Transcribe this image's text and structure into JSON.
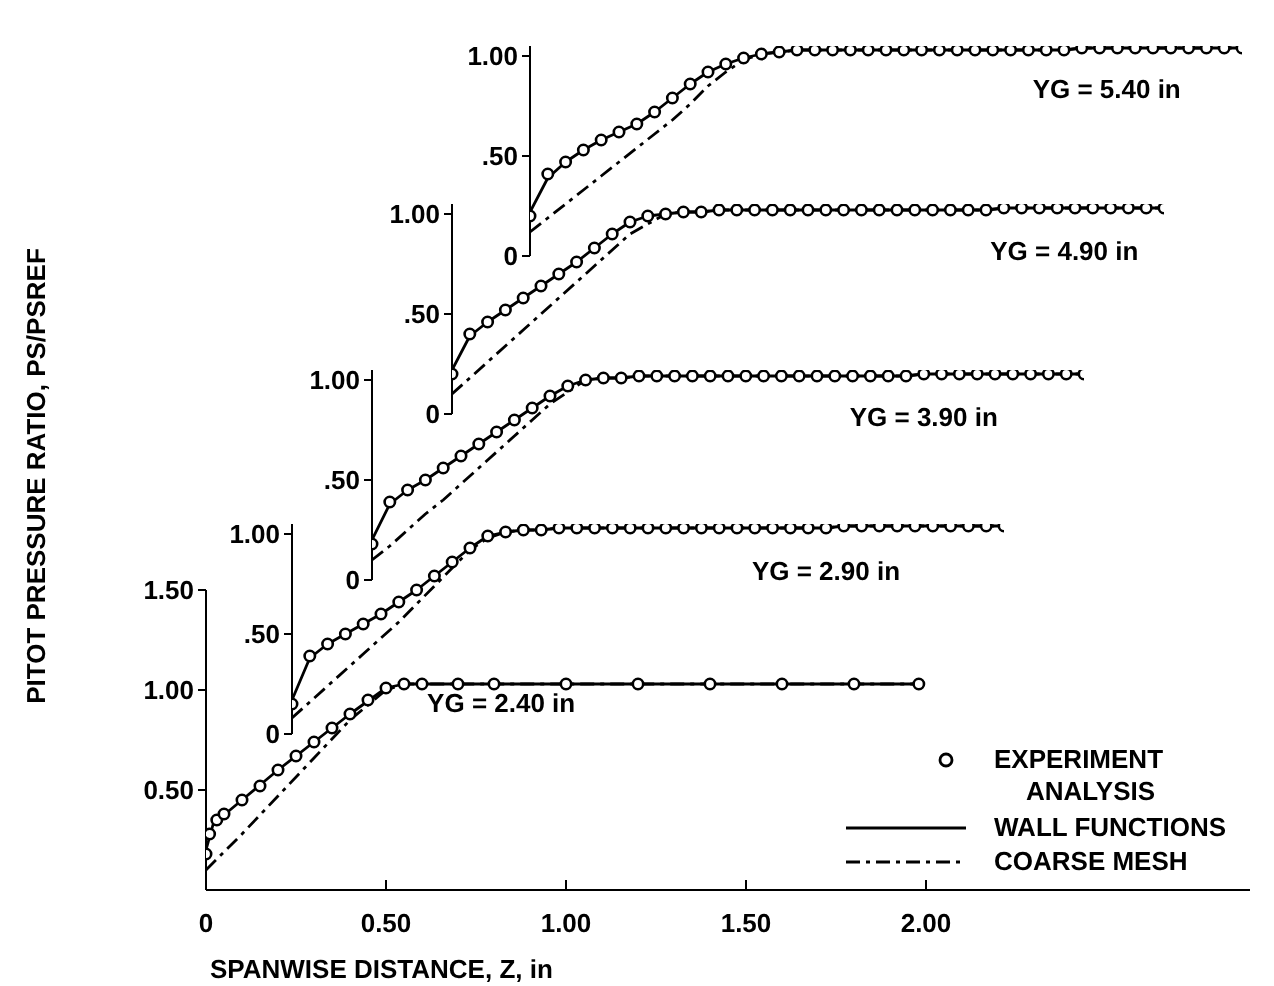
{
  "chart_data": [
    {
      "type": "scatter",
      "categories": [
        null,
        null,
        null,
        null,
        null,
        null,
        null,
        null,
        null,
        null,
        null,
        null,
        null,
        null,
        null,
        null,
        null,
        null,
        null,
        null,
        null,
        null,
        null,
        null,
        null,
        null,
        null,
        null,
        null,
        null,
        null,
        null,
        null,
        null,
        null,
        null,
        null,
        null,
        null,
        null,
        null
      ],
      "ylim": [
        0,
        1.05
      ],
      "yticks": [
        {
          "value": 0,
          "label": "0"
        },
        {
          "value": 0.5,
          "label": ".50"
        },
        {
          "value": 1.0,
          "label": "1.00"
        }
      ],
      "tick_labels": "y",
      "annotations": [
        "YG = 5.40 in"
      ],
      "series": [
        {
          "color": "#000000",
          "marker": "circle",
          "values": [
            0.2,
            0.41,
            0.47,
            0.53,
            0.58,
            0.62,
            0.66,
            0.72,
            0.79,
            0.86,
            0.92,
            0.96,
            0.99,
            1.01,
            1.02,
            1.03,
            1.03,
            1.03,
            1.03,
            1.03,
            1.03,
            1.03,
            1.03,
            1.03,
            1.03,
            1.03,
            1.03,
            1.03,
            1.03,
            1.03,
            1.03,
            1.04,
            1.04,
            1.04,
            1.04,
            1.04,
            1.04,
            1.04,
            1.04,
            1.04,
            1.04
          ]
        },
        {
          "type": "line",
          "color": "#000000",
          "line_style": "solid",
          "values": [
            0.22,
            0.39,
            0.47,
            0.53,
            0.58,
            0.62,
            0.66,
            0.72,
            0.79,
            0.86,
            0.92,
            0.96,
            0.99,
            1.01,
            1.02,
            1.03,
            1.03,
            1.03,
            1.03,
            1.03,
            1.03,
            1.03,
            1.03,
            1.03,
            1.03,
            1.03,
            1.03,
            1.03,
            1.03,
            1.03,
            1.03,
            1.04,
            1.04,
            1.04,
            1.04,
            1.04,
            1.04,
            1.04,
            1.04,
            1.04,
            1.04
          ]
        },
        {
          "type": "line",
          "color": "#000000",
          "line_style": "dashed",
          "values": [
            0.12,
            0.19,
            0.26,
            0.33,
            0.4,
            0.47,
            0.54,
            0.61,
            0.68,
            0.76,
            0.85,
            0.92,
            0.98,
            1.01,
            1.02,
            1.03,
            1.03,
            1.03,
            1.03,
            1.03,
            1.03,
            1.03,
            1.03,
            1.03,
            1.03,
            1.03,
            1.03,
            1.03,
            1.03,
            1.03,
            1.03,
            1.04,
            1.04,
            1.04,
            1.04,
            1.04,
            1.04,
            1.04,
            1.04,
            1.04,
            1.04
          ]
        }
      ]
    },
    {
      "type": "scatter",
      "categories": [
        null,
        null,
        null,
        null,
        null,
        null,
        null,
        null,
        null,
        null,
        null,
        null,
        null,
        null,
        null,
        null,
        null,
        null,
        null,
        null,
        null,
        null,
        null,
        null,
        null,
        null,
        null,
        null,
        null,
        null,
        null,
        null,
        null,
        null,
        null,
        null,
        null,
        null,
        null,
        null,
        null
      ],
      "ylim": [
        0,
        1.05
      ],
      "yticks": [
        {
          "value": 0,
          "label": "0"
        },
        {
          "value": 0.5,
          "label": ".50"
        },
        {
          "value": 1.0,
          "label": "1.00"
        }
      ],
      "tick_labels": "y",
      "annotations": [
        "YG = 4.90 in"
      ],
      "series": [
        {
          "color": "#000000",
          "marker": "circle",
          "values": [
            0.2,
            0.4,
            0.46,
            0.52,
            0.58,
            0.64,
            0.7,
            0.76,
            0.83,
            0.9,
            0.96,
            0.99,
            1.0,
            1.01,
            1.01,
            1.02,
            1.02,
            1.02,
            1.02,
            1.02,
            1.02,
            1.02,
            1.02,
            1.02,
            1.02,
            1.02,
            1.02,
            1.02,
            1.02,
            1.02,
            1.02,
            1.03,
            1.03,
            1.03,
            1.03,
            1.03,
            1.03,
            1.03,
            1.03,
            1.03,
            1.03
          ]
        },
        {
          "type": "line",
          "color": "#000000",
          "line_style": "solid",
          "values": [
            0.22,
            0.39,
            0.46,
            0.52,
            0.58,
            0.64,
            0.7,
            0.76,
            0.83,
            0.9,
            0.96,
            0.99,
            1.0,
            1.01,
            1.01,
            1.02,
            1.02,
            1.02,
            1.02,
            1.02,
            1.02,
            1.02,
            1.02,
            1.02,
            1.02,
            1.02,
            1.02,
            1.02,
            1.02,
            1.02,
            1.02,
            1.03,
            1.03,
            1.03,
            1.03,
            1.03,
            1.03,
            1.03,
            1.03,
            1.03,
            1.03
          ]
        },
        {
          "type": "line",
          "color": "#000000",
          "line_style": "dashed",
          "values": [
            0.1,
            0.18,
            0.26,
            0.34,
            0.42,
            0.5,
            0.58,
            0.66,
            0.74,
            0.82,
            0.9,
            0.95,
            1.0,
            1.01,
            1.01,
            1.02,
            1.02,
            1.02,
            1.02,
            1.02,
            1.02,
            1.02,
            1.02,
            1.02,
            1.02,
            1.02,
            1.02,
            1.02,
            1.02,
            1.02,
            1.02,
            1.03,
            1.03,
            1.03,
            1.03,
            1.03,
            1.03,
            1.03,
            1.03,
            1.03,
            1.03
          ]
        }
      ]
    },
    {
      "type": "scatter",
      "categories": [
        null,
        null,
        null,
        null,
        null,
        null,
        null,
        null,
        null,
        null,
        null,
        null,
        null,
        null,
        null,
        null,
        null,
        null,
        null,
        null,
        null,
        null,
        null,
        null,
        null,
        null,
        null,
        null,
        null,
        null,
        null,
        null,
        null,
        null,
        null,
        null,
        null,
        null,
        null,
        null,
        null
      ],
      "ylim": [
        0,
        1.05
      ],
      "yticks": [
        {
          "value": 0,
          "label": "0"
        },
        {
          "value": 0.5,
          "label": ".50"
        },
        {
          "value": 1.0,
          "label": "1.00"
        }
      ],
      "tick_labels": "y",
      "annotations": [
        "YG = 3.90 in"
      ],
      "series": [
        {
          "color": "#000000",
          "marker": "circle",
          "values": [
            0.18,
            0.39,
            0.45,
            0.5,
            0.56,
            0.62,
            0.68,
            0.74,
            0.8,
            0.86,
            0.92,
            0.97,
            1.0,
            1.01,
            1.01,
            1.02,
            1.02,
            1.02,
            1.02,
            1.02,
            1.02,
            1.02,
            1.02,
            1.02,
            1.02,
            1.02,
            1.02,
            1.02,
            1.02,
            1.02,
            1.02,
            1.03,
            1.03,
            1.03,
            1.03,
            1.03,
            1.03,
            1.03,
            1.03,
            1.03,
            1.03
          ]
        },
        {
          "type": "line",
          "color": "#000000",
          "line_style": "solid",
          "values": [
            0.2,
            0.38,
            0.45,
            0.5,
            0.56,
            0.62,
            0.68,
            0.74,
            0.8,
            0.86,
            0.92,
            0.97,
            1.0,
            1.01,
            1.01,
            1.02,
            1.02,
            1.02,
            1.02,
            1.02,
            1.02,
            1.02,
            1.02,
            1.02,
            1.02,
            1.02,
            1.02,
            1.02,
            1.02,
            1.02,
            1.02,
            1.03,
            1.03,
            1.03,
            1.03,
            1.03,
            1.03,
            1.03,
            1.03,
            1.03,
            1.03
          ]
        },
        {
          "type": "line",
          "color": "#000000",
          "line_style": "dashed",
          "values": [
            0.1,
            0.17,
            0.25,
            0.33,
            0.4,
            0.48,
            0.56,
            0.64,
            0.72,
            0.8,
            0.88,
            0.94,
            1.0,
            1.01,
            1.01,
            1.02,
            1.02,
            1.02,
            1.02,
            1.02,
            1.02,
            1.02,
            1.02,
            1.02,
            1.02,
            1.02,
            1.02,
            1.02,
            1.02,
            1.02,
            1.02,
            1.03,
            1.03,
            1.03,
            1.03,
            1.03,
            1.03,
            1.03,
            1.03,
            1.03,
            1.03
          ]
        }
      ]
    },
    {
      "type": "scatter",
      "categories": [
        null,
        null,
        null,
        null,
        null,
        null,
        null,
        null,
        null,
        null,
        null,
        null,
        null,
        null,
        null,
        null,
        null,
        null,
        null,
        null,
        null,
        null,
        null,
        null,
        null,
        null,
        null,
        null,
        null,
        null,
        null,
        null,
        null,
        null,
        null,
        null,
        null,
        null,
        null,
        null,
        null
      ],
      "ylim": [
        0,
        1.05
      ],
      "yticks": [
        {
          "value": 0,
          "label": "0"
        },
        {
          "value": 0.5,
          "label": ".50"
        },
        {
          "value": 1.0,
          "label": "1.00"
        }
      ],
      "tick_labels": "y",
      "annotations": [
        "YG = 2.90 in"
      ],
      "series": [
        {
          "color": "#000000",
          "marker": "circle",
          "values": [
            0.15,
            0.39,
            0.45,
            0.5,
            0.55,
            0.6,
            0.66,
            0.72,
            0.79,
            0.86,
            0.93,
            0.99,
            1.01,
            1.02,
            1.02,
            1.03,
            1.03,
            1.03,
            1.03,
            1.03,
            1.03,
            1.03,
            1.03,
            1.03,
            1.03,
            1.03,
            1.03,
            1.03,
            1.03,
            1.03,
            1.03,
            1.04,
            1.04,
            1.04,
            1.04,
            1.04,
            1.04,
            1.04,
            1.04,
            1.04,
            1.04
          ]
        },
        {
          "type": "line",
          "color": "#000000",
          "line_style": "solid",
          "values": [
            0.17,
            0.38,
            0.45,
            0.5,
            0.55,
            0.6,
            0.66,
            0.72,
            0.79,
            0.86,
            0.93,
            0.99,
            1.01,
            1.02,
            1.02,
            1.03,
            1.03,
            1.03,
            1.03,
            1.03,
            1.03,
            1.03,
            1.03,
            1.03,
            1.03,
            1.03,
            1.03,
            1.03,
            1.03,
            1.03,
            1.03,
            1.04,
            1.04,
            1.04,
            1.04,
            1.04,
            1.04,
            1.04,
            1.04,
            1.04,
            1.04
          ]
        },
        {
          "type": "line",
          "color": "#000000",
          "line_style": "dashed",
          "values": [
            0.08,
            0.16,
            0.24,
            0.32,
            0.4,
            0.48,
            0.56,
            0.65,
            0.74,
            0.83,
            0.92,
            0.98,
            1.01,
            1.02,
            1.02,
            1.03,
            1.03,
            1.03,
            1.03,
            1.03,
            1.03,
            1.03,
            1.03,
            1.03,
            1.03,
            1.03,
            1.03,
            1.03,
            1.03,
            1.03,
            1.03,
            1.04,
            1.04,
            1.04,
            1.04,
            1.04,
            1.04,
            1.04,
            1.04,
            1.04,
            1.04
          ]
        }
      ]
    },
    {
      "type": "scatter",
      "xlim": [
        0,
        2.9
      ],
      "ylim": [
        0,
        1.5
      ],
      "xticks": [
        0,
        {
          "value": 0.5,
          "label": "0.50"
        },
        {
          "value": 1.0,
          "label": "1.00"
        },
        {
          "value": 1.5,
          "label": "1.50"
        },
        {
          "value": 2.0,
          "label": "2.00"
        }
      ],
      "yticks": [
        {
          "value": 0.5,
          "label": "0.50"
        },
        {
          "value": 1.0,
          "label": "1.00"
        },
        {
          "value": 1.5,
          "label": "1.50"
        }
      ],
      "xlabel": "SPANWISE DISTANCE, Z, in",
      "ylabel": "PITOT PRESSURE RATIO, PS/PSREF",
      "legend": "bottom right",
      "legend_title": "ANALYSIS",
      "annotations": [
        "YG = 2.40 in"
      ],
      "series": [
        {
          "name": "EXPERIMENT",
          "color": "#000000",
          "marker": "circle",
          "x": [
            0,
            0.01,
            0.03,
            0.05,
            0.1,
            0.15,
            0.2,
            0.25,
            0.3,
            0.35,
            0.4,
            0.45,
            0.5,
            0.55,
            0.6,
            0.7,
            0.8,
            1.0,
            1.2,
            1.4,
            1.6,
            1.8,
            1.98
          ],
          "values": [
            0.18,
            0.28,
            0.35,
            0.38,
            0.45,
            0.52,
            0.6,
            0.67,
            0.74,
            0.81,
            0.88,
            0.95,
            1.01,
            1.03,
            1.03,
            1.03,
            1.03,
            1.03,
            1.03,
            1.03,
            1.03,
            1.03,
            1.03
          ]
        },
        {
          "type": "line",
          "name": "WALL FUNCTIONS",
          "color": "#000000",
          "line_style": "solid",
          "x": [
            0,
            0.02,
            0.1,
            0.2,
            0.3,
            0.4,
            0.5,
            0.55,
            1.98
          ],
          "values": [
            0.2,
            0.33,
            0.45,
            0.6,
            0.74,
            0.88,
            1.01,
            1.03,
            1.03
          ]
        },
        {
          "type": "line",
          "name": "COARSE MESH",
          "color": "#000000",
          "line_style": "dashed",
          "x": [
            0,
            0.1,
            0.2,
            0.3,
            0.4,
            0.5,
            0.55,
            1.98
          ],
          "values": [
            0.1,
            0.28,
            0.47,
            0.66,
            0.85,
            1.0,
            1.03,
            1.03
          ]
        }
      ]
    }
  ]
}
